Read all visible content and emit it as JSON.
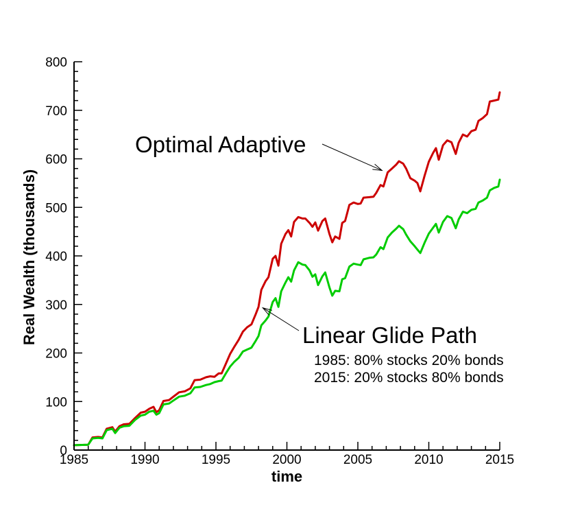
{
  "chart_data": {
    "type": "line",
    "xlabel": "time",
    "ylabel": "Real Wealth (thousands)",
    "xlim": [
      1985,
      2015
    ],
    "ylim": [
      0,
      800
    ],
    "x_ticks": [
      1985,
      1990,
      1995,
      2000,
      2005,
      2010,
      2015
    ],
    "y_ticks": [
      0,
      100,
      200,
      300,
      400,
      500,
      600,
      700,
      800
    ],
    "grid": false,
    "series": [
      {
        "color": "#cc0000",
        "points": [
          [
            1985.0,
            10
          ],
          [
            1986.0,
            11
          ],
          [
            1986.3,
            26
          ],
          [
            1986.7,
            27
          ],
          [
            1987.0,
            26
          ],
          [
            1987.3,
            44
          ],
          [
            1987.7,
            47
          ],
          [
            1987.9,
            38
          ],
          [
            1988.2,
            49
          ],
          [
            1988.5,
            53
          ],
          [
            1988.9,
            54
          ],
          [
            1989.3,
            66
          ],
          [
            1989.7,
            77
          ],
          [
            1990.0,
            79
          ],
          [
            1990.3,
            85
          ],
          [
            1990.6,
            89
          ],
          [
            1990.8,
            78
          ],
          [
            1991.0,
            82
          ],
          [
            1991.3,
            101
          ],
          [
            1991.7,
            103
          ],
          [
            1992.0,
            110
          ],
          [
            1992.4,
            119
          ],
          [
            1992.8,
            121
          ],
          [
            1993.2,
            127
          ],
          [
            1993.5,
            144
          ],
          [
            1993.9,
            145
          ],
          [
            1994.3,
            150
          ],
          [
            1994.6,
            152
          ],
          [
            1994.9,
            151
          ],
          [
            1995.2,
            158
          ],
          [
            1995.4,
            158
          ],
          [
            1995.7,
            178
          ],
          [
            1996.0,
            198
          ],
          [
            1996.3,
            213
          ],
          [
            1996.6,
            227
          ],
          [
            1996.9,
            244
          ],
          [
            1997.2,
            253
          ],
          [
            1997.5,
            259
          ],
          [
            1997.8,
            280
          ],
          [
            1998.0,
            295
          ],
          [
            1998.2,
            330
          ],
          [
            1998.5,
            348
          ],
          [
            1998.7,
            356
          ],
          [
            1999.0,
            394
          ],
          [
            1999.2,
            400
          ],
          [
            1999.4,
            380
          ],
          [
            1999.6,
            425
          ],
          [
            1999.9,
            445
          ],
          [
            2000.1,
            453
          ],
          [
            2000.3,
            440
          ],
          [
            2000.5,
            470
          ],
          [
            2000.8,
            480
          ],
          [
            2001.1,
            477
          ],
          [
            2001.3,
            477
          ],
          [
            2001.6,
            468
          ],
          [
            2001.8,
            460
          ],
          [
            2002.0,
            469
          ],
          [
            2002.2,
            452
          ],
          [
            2002.5,
            472
          ],
          [
            2002.7,
            477
          ],
          [
            2003.0,
            445
          ],
          [
            2003.2,
            428
          ],
          [
            2003.4,
            440
          ],
          [
            2003.7,
            435
          ],
          [
            2003.9,
            468
          ],
          [
            2004.1,
            472
          ],
          [
            2004.4,
            505
          ],
          [
            2004.7,
            510
          ],
          [
            2005.0,
            507
          ],
          [
            2005.2,
            508
          ],
          [
            2005.4,
            520
          ],
          [
            2005.8,
            521
          ],
          [
            2006.1,
            522
          ],
          [
            2006.3,
            530
          ],
          [
            2006.6,
            546
          ],
          [
            2006.8,
            543
          ],
          [
            2007.1,
            572
          ],
          [
            2007.4,
            580
          ],
          [
            2007.7,
            588
          ],
          [
            2007.9,
            595
          ],
          [
            2008.2,
            590
          ],
          [
            2008.4,
            580
          ],
          [
            2008.7,
            560
          ],
          [
            2009.0,
            555
          ],
          [
            2009.2,
            550
          ],
          [
            2009.4,
            533
          ],
          [
            2009.7,
            565
          ],
          [
            2010.0,
            594
          ],
          [
            2010.3,
            612
          ],
          [
            2010.5,
            622
          ],
          [
            2010.7,
            598
          ],
          [
            2011.0,
            628
          ],
          [
            2011.3,
            638
          ],
          [
            2011.6,
            634
          ],
          [
            2011.9,
            610
          ],
          [
            2012.1,
            633
          ],
          [
            2012.4,
            650
          ],
          [
            2012.7,
            646
          ],
          [
            2013.0,
            657
          ],
          [
            2013.3,
            660
          ],
          [
            2013.5,
            678
          ],
          [
            2013.8,
            684
          ],
          [
            2014.1,
            692
          ],
          [
            2014.3,
            718
          ],
          [
            2014.6,
            720
          ],
          [
            2014.9,
            722
          ],
          [
            2015.0,
            737
          ]
        ]
      },
      {
        "color": "#00cc00",
        "points": [
          [
            1985.0,
            10
          ],
          [
            1986.0,
            11
          ],
          [
            1986.3,
            24
          ],
          [
            1986.7,
            25
          ],
          [
            1987.0,
            24
          ],
          [
            1987.3,
            41
          ],
          [
            1987.7,
            44
          ],
          [
            1987.9,
            35
          ],
          [
            1988.2,
            46
          ],
          [
            1988.5,
            49
          ],
          [
            1988.9,
            50
          ],
          [
            1989.3,
            62
          ],
          [
            1989.7,
            71
          ],
          [
            1990.0,
            73
          ],
          [
            1990.3,
            79
          ],
          [
            1990.6,
            81
          ],
          [
            1990.8,
            73
          ],
          [
            1991.0,
            76
          ],
          [
            1991.3,
            94
          ],
          [
            1991.7,
            96
          ],
          [
            1992.0,
            102
          ],
          [
            1992.4,
            110
          ],
          [
            1992.8,
            112
          ],
          [
            1993.2,
            117
          ],
          [
            1993.5,
            129
          ],
          [
            1993.9,
            130
          ],
          [
            1994.3,
            134
          ],
          [
            1994.6,
            136
          ],
          [
            1994.9,
            140
          ],
          [
            1995.2,
            142
          ],
          [
            1995.4,
            143
          ],
          [
            1995.7,
            158
          ],
          [
            1996.0,
            172
          ],
          [
            1996.3,
            182
          ],
          [
            1996.6,
            190
          ],
          [
            1996.9,
            203
          ],
          [
            1997.2,
            207
          ],
          [
            1997.5,
            211
          ],
          [
            1997.8,
            225
          ],
          [
            1998.0,
            235
          ],
          [
            1998.2,
            257
          ],
          [
            1998.5,
            267
          ],
          [
            1998.7,
            275
          ],
          [
            1999.0,
            305
          ],
          [
            1999.2,
            313
          ],
          [
            1999.4,
            295
          ],
          [
            1999.6,
            327
          ],
          [
            1999.9,
            345
          ],
          [
            2000.1,
            356
          ],
          [
            2000.3,
            347
          ],
          [
            2000.5,
            370
          ],
          [
            2000.8,
            387
          ],
          [
            2001.1,
            382
          ],
          [
            2001.3,
            381
          ],
          [
            2001.6,
            370
          ],
          [
            2001.8,
            357
          ],
          [
            2002.0,
            362
          ],
          [
            2002.2,
            340
          ],
          [
            2002.5,
            358
          ],
          [
            2002.7,
            366
          ],
          [
            2003.0,
            335
          ],
          [
            2003.2,
            318
          ],
          [
            2003.4,
            328
          ],
          [
            2003.7,
            327
          ],
          [
            2003.9,
            352
          ],
          [
            2004.1,
            354
          ],
          [
            2004.4,
            378
          ],
          [
            2004.7,
            384
          ],
          [
            2005.0,
            382
          ],
          [
            2005.2,
            381
          ],
          [
            2005.4,
            393
          ],
          [
            2005.8,
            396
          ],
          [
            2006.1,
            397
          ],
          [
            2006.3,
            403
          ],
          [
            2006.6,
            418
          ],
          [
            2006.8,
            414
          ],
          [
            2007.1,
            438
          ],
          [
            2007.4,
            448
          ],
          [
            2007.7,
            456
          ],
          [
            2007.9,
            462
          ],
          [
            2008.2,
            455
          ],
          [
            2008.4,
            444
          ],
          [
            2008.7,
            430
          ],
          [
            2009.0,
            420
          ],
          [
            2009.2,
            413
          ],
          [
            2009.4,
            406
          ],
          [
            2009.7,
            427
          ],
          [
            2010.0,
            446
          ],
          [
            2010.3,
            458
          ],
          [
            2010.5,
            466
          ],
          [
            2010.7,
            448
          ],
          [
            2011.0,
            470
          ],
          [
            2011.3,
            482
          ],
          [
            2011.6,
            478
          ],
          [
            2011.9,
            457
          ],
          [
            2012.1,
            475
          ],
          [
            2012.4,
            491
          ],
          [
            2012.7,
            488
          ],
          [
            2013.0,
            495
          ],
          [
            2013.3,
            497
          ],
          [
            2013.5,
            510
          ],
          [
            2013.8,
            514
          ],
          [
            2014.1,
            520
          ],
          [
            2014.3,
            535
          ],
          [
            2014.6,
            540
          ],
          [
            2014.9,
            543
          ],
          [
            2015.0,
            557
          ]
        ]
      }
    ],
    "annotations": [
      {
        "text": "Optimal Adaptive",
        "style": "big",
        "arrow_to": [
          2006.7,
          576
        ]
      },
      {
        "text": "Linear Glide Path",
        "style": "big",
        "arrow_to": [
          1998.3,
          293
        ]
      },
      {
        "text": "1985: 80% stocks 20% bonds",
        "style": "small"
      },
      {
        "text": "2015: 20% stocks 80% bonds",
        "style": "small"
      }
    ]
  }
}
